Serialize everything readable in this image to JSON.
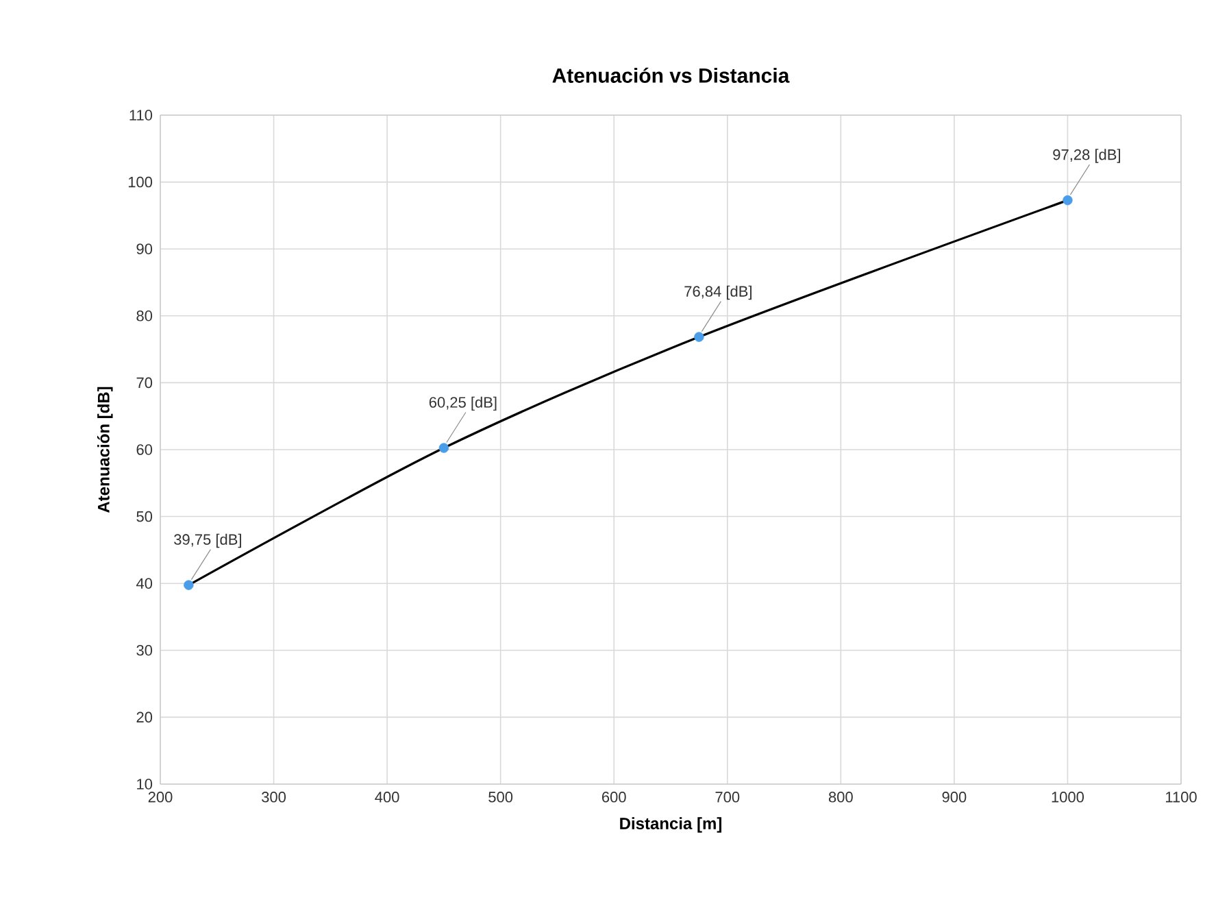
{
  "chart_data": {
    "type": "line",
    "title": "Atenuación vs Distancia",
    "xlabel": "Distancia [m]",
    "ylabel": "Atenuación [dB]",
    "xlim": [
      200,
      1100
    ],
    "xticks": [
      200,
      300,
      400,
      500,
      600,
      700,
      800,
      900,
      1000,
      1100
    ],
    "ylim": [
      10,
      110
    ],
    "yticks": [
      10,
      20,
      30,
      40,
      50,
      60,
      70,
      80,
      90,
      100,
      110
    ],
    "grid": true,
    "series": [
      {
        "color": "#000000",
        "x": [
          225,
          450,
          675,
          1000
        ],
        "values": [
          39.75,
          60.25,
          76.84,
          97.28
        ]
      },
      {
        "type": "scatter",
        "color": "#4a9de8",
        "x": [
          225,
          450,
          675,
          1000
        ],
        "values": [
          39.75,
          60.25,
          76.84,
          97.28
        ],
        "value_labels": [
          "39,75 [dB]",
          "60,25 [dB]",
          "76,84 [dB]",
          "97,28 [dB]"
        ]
      }
    ]
  }
}
